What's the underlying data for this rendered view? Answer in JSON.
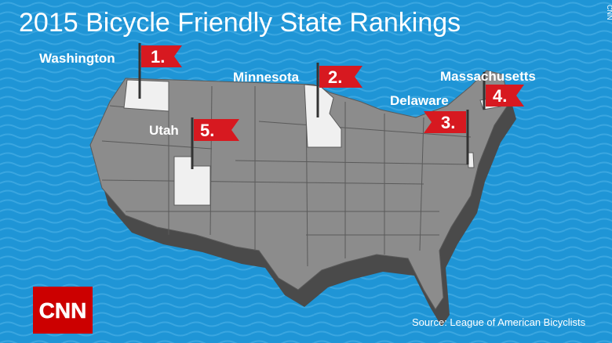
{
  "title": "2015 Bicycle Friendly State Rankings",
  "rankings": [
    {
      "state": "Washington",
      "rank": "1."
    },
    {
      "state": "Minnesota",
      "rank": "2."
    },
    {
      "state": "Delaware",
      "rank": "3."
    },
    {
      "state": "Massachusetts",
      "rank": "4."
    },
    {
      "state": "Utah",
      "rank": "5."
    }
  ],
  "source": "Source: League of American Bicyclists",
  "logo": "CNN",
  "watermark": "CNN"
}
